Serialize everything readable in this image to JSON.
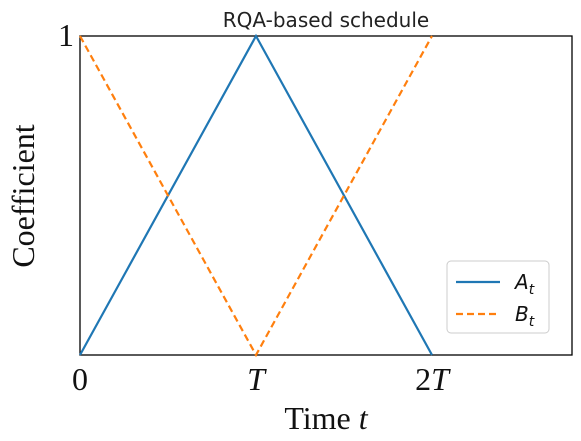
{
  "chart_data": {
    "type": "line",
    "title": "RQA-based schedule",
    "xlabel": "Time",
    "xlabel_var": "t",
    "ylabel": "Coefficient",
    "xlim": [
      0,
      2.8
    ],
    "ylim": [
      0,
      1
    ],
    "xticks": [
      {
        "value": 0,
        "label": "0"
      },
      {
        "value": 1,
        "label": "T"
      },
      {
        "value": 2,
        "label": "2T"
      }
    ],
    "yticks": [
      {
        "value": 1,
        "label": "1"
      }
    ],
    "series": [
      {
        "name": "A_t",
        "name_base": "A",
        "name_sub": "t",
        "color": "#1f77b4",
        "dash": "solid",
        "x": [
          0,
          1,
          2
        ],
        "y": [
          0,
          1,
          0
        ]
      },
      {
        "name": "B_t",
        "name_base": "B",
        "name_sub": "t",
        "color": "#ff7f0e",
        "dash": "dashed",
        "x": [
          0,
          1,
          2
        ],
        "y": [
          1,
          0,
          1
        ]
      }
    ],
    "grid": false,
    "legend_position": "lower-right"
  }
}
